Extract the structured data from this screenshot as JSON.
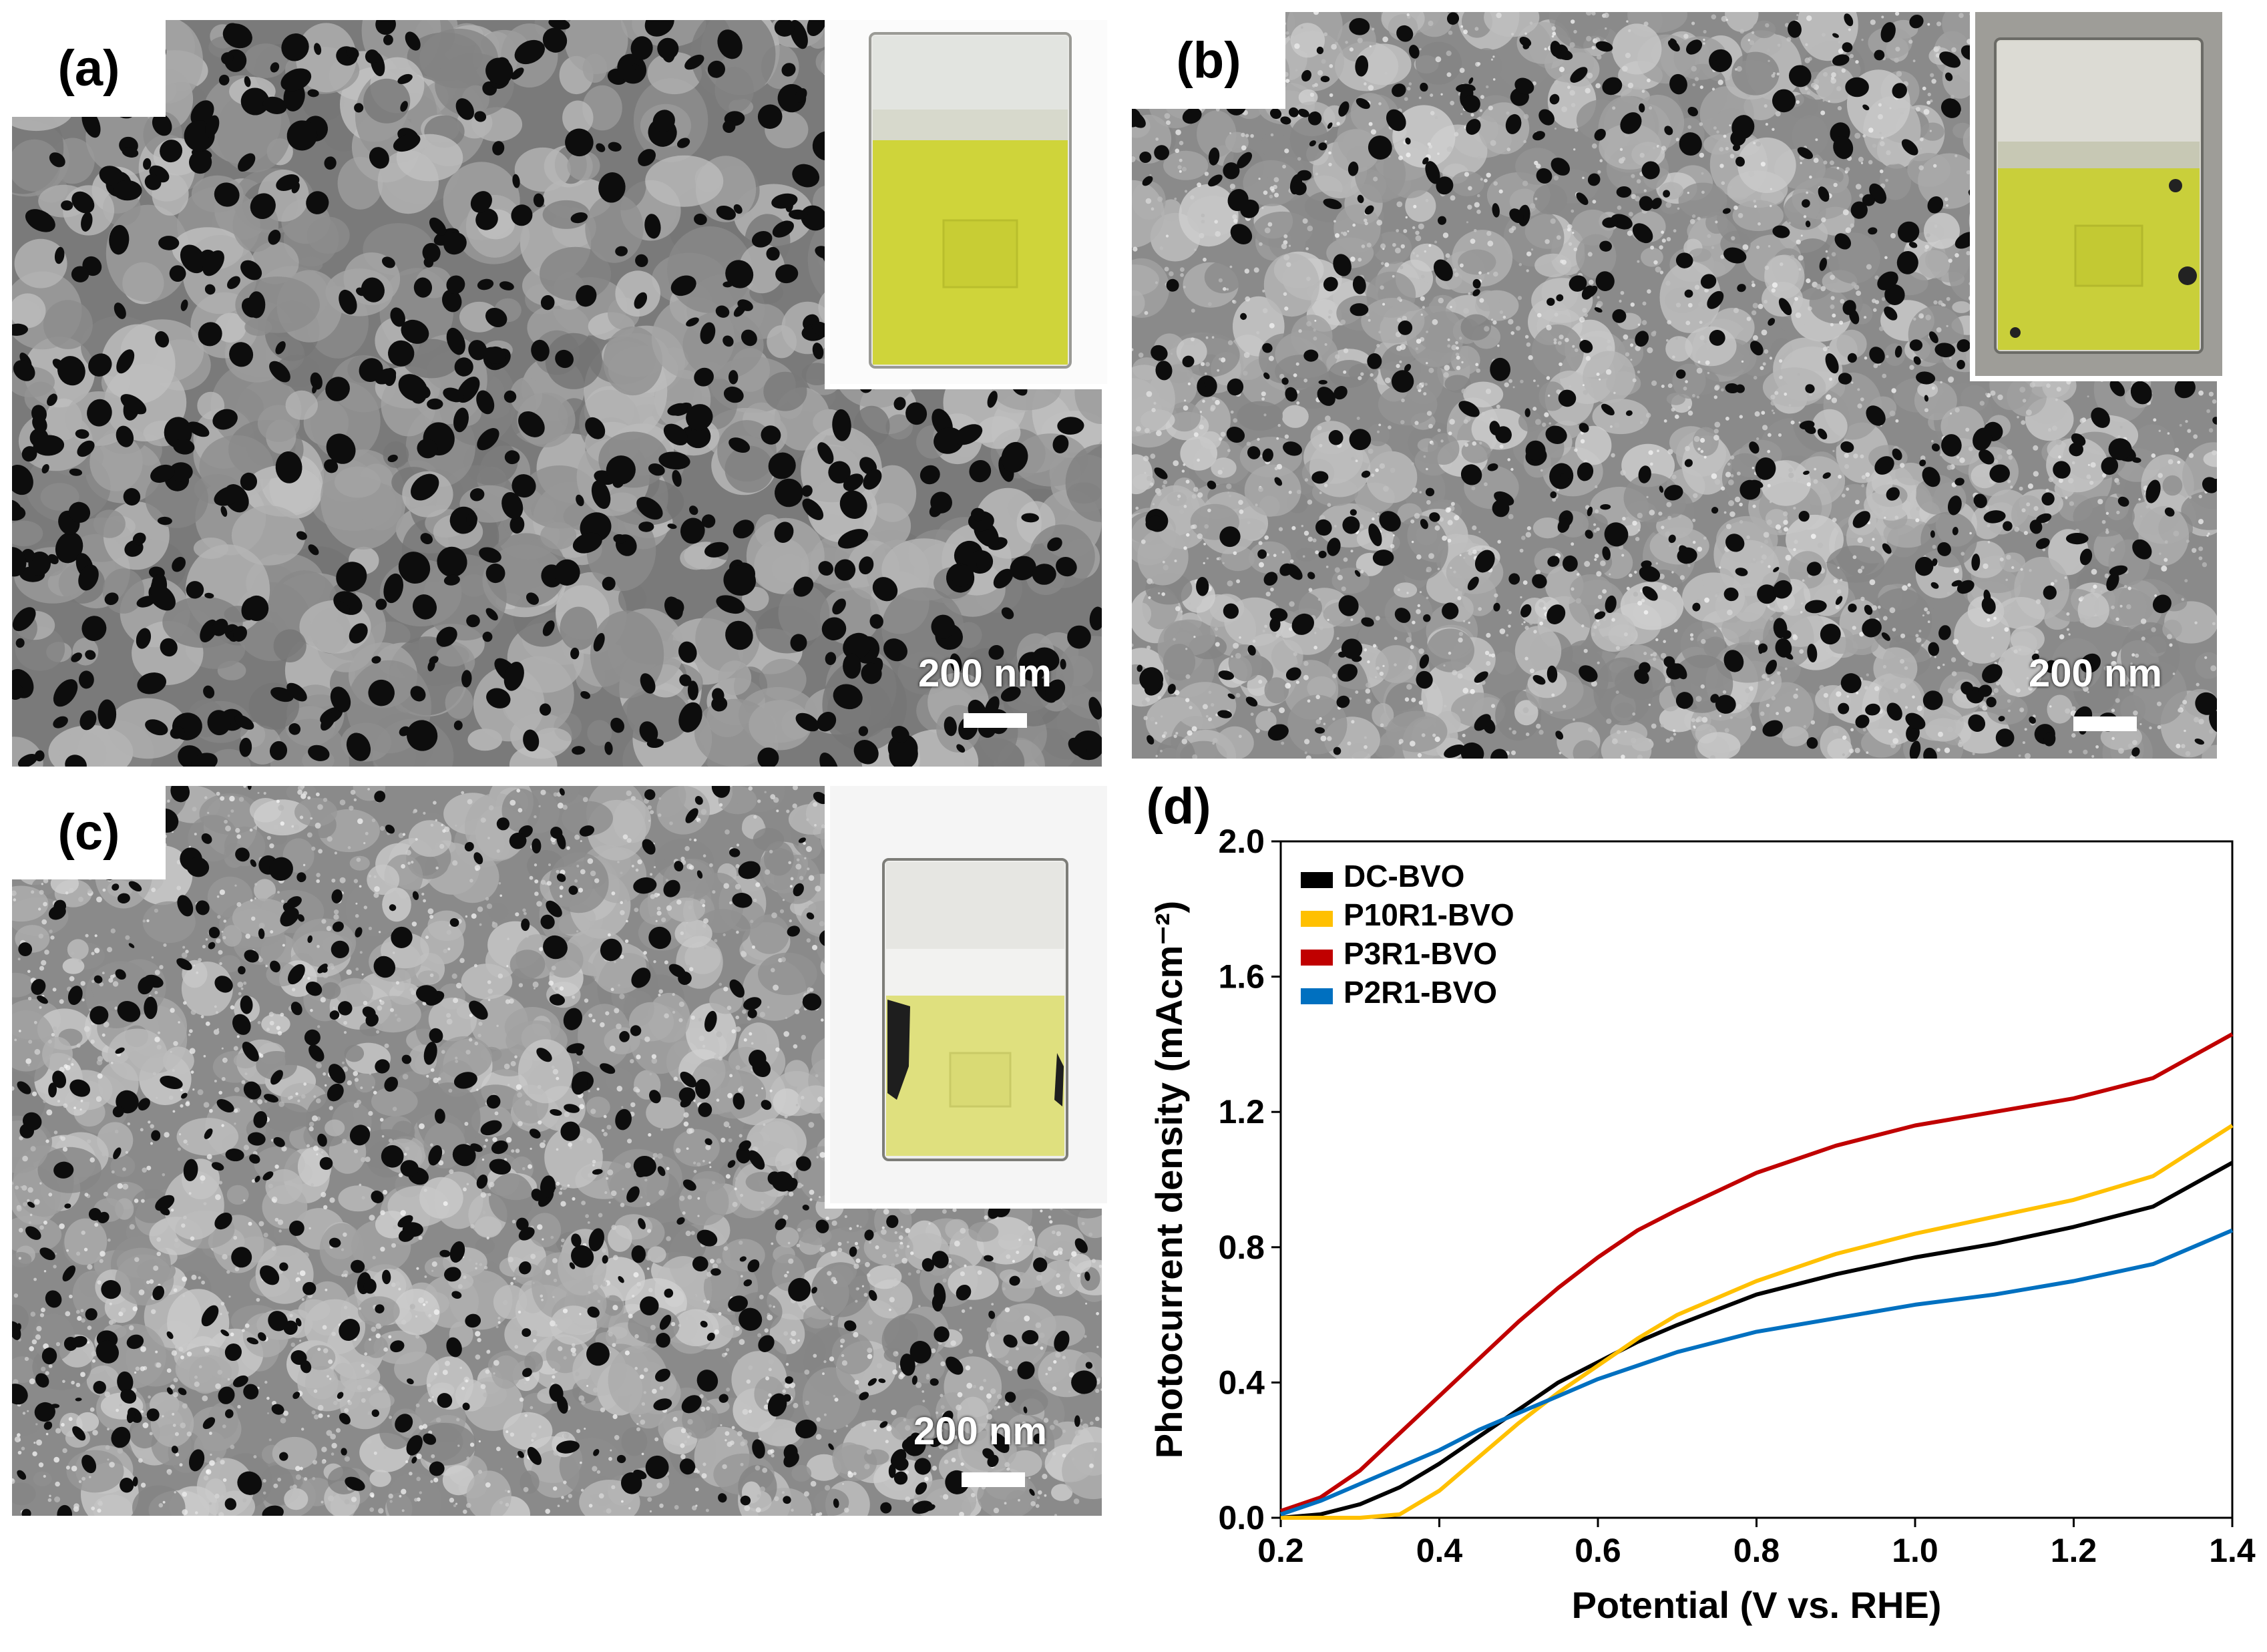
{
  "panels": {
    "a": {
      "label": "(a)",
      "scale_text": "200 nm"
    },
    "b": {
      "label": "(b)",
      "scale_text": "200 nm"
    },
    "c": {
      "label": "(c)",
      "scale_text": "200 nm"
    },
    "d": {
      "label": "(d)"
    }
  },
  "colors": {
    "DC-BVO": "#000000",
    "P10R1-BVO": "#ffc000",
    "P3R1-BVO": "#c00000",
    "P2R1-BVO": "#0070c0",
    "film_yellow": "#cfd43a"
  },
  "chart_data": {
    "type": "line",
    "xlabel": "Potential (V vs. RHE)",
    "ylabel": "Photocurrent density (mAcm⁻²)",
    "xlim": [
      0.2,
      1.4
    ],
    "ylim": [
      0.0,
      2.0
    ],
    "x_ticks": [
      "0.2",
      "0.4",
      "0.6",
      "0.8",
      "1.0",
      "1.2",
      "1.4"
    ],
    "y_ticks": [
      "0.0",
      "0.4",
      "0.8",
      "1.2",
      "1.6",
      "2.0"
    ],
    "legend_position": "top-left",
    "series": [
      {
        "name": "DC-BVO",
        "color": "#000000",
        "x": [
          0.2,
          0.25,
          0.3,
          0.35,
          0.4,
          0.45,
          0.5,
          0.55,
          0.6,
          0.65,
          0.7,
          0.8,
          0.9,
          1.0,
          1.1,
          1.2,
          1.3,
          1.4
        ],
        "y": [
          0.0,
          0.01,
          0.04,
          0.09,
          0.16,
          0.24,
          0.32,
          0.4,
          0.46,
          0.52,
          0.57,
          0.66,
          0.72,
          0.77,
          0.81,
          0.86,
          0.92,
          1.05
        ]
      },
      {
        "name": "P10R1-BVO",
        "color": "#ffc000",
        "x": [
          0.2,
          0.25,
          0.3,
          0.35,
          0.4,
          0.45,
          0.5,
          0.55,
          0.6,
          0.65,
          0.7,
          0.8,
          0.9,
          1.0,
          1.1,
          1.2,
          1.3,
          1.4
        ],
        "y": [
          0.0,
          0.0,
          0.0,
          0.01,
          0.08,
          0.18,
          0.28,
          0.37,
          0.45,
          0.53,
          0.6,
          0.7,
          0.78,
          0.84,
          0.89,
          0.94,
          1.01,
          1.16
        ]
      },
      {
        "name": "P3R1-BVO",
        "color": "#c00000",
        "x": [
          0.2,
          0.25,
          0.3,
          0.35,
          0.4,
          0.45,
          0.5,
          0.55,
          0.6,
          0.65,
          0.7,
          0.8,
          0.9,
          1.0,
          1.1,
          1.2,
          1.3,
          1.4
        ],
        "y": [
          0.02,
          0.06,
          0.14,
          0.25,
          0.36,
          0.47,
          0.58,
          0.68,
          0.77,
          0.85,
          0.91,
          1.02,
          1.1,
          1.16,
          1.2,
          1.24,
          1.3,
          1.43
        ]
      },
      {
        "name": "P2R1-BVO",
        "color": "#0070c0",
        "x": [
          0.2,
          0.25,
          0.3,
          0.35,
          0.4,
          0.45,
          0.5,
          0.55,
          0.6,
          0.65,
          0.7,
          0.8,
          0.9,
          1.0,
          1.1,
          1.2,
          1.3,
          1.4
        ],
        "y": [
          0.01,
          0.05,
          0.1,
          0.15,
          0.2,
          0.26,
          0.31,
          0.36,
          0.41,
          0.45,
          0.49,
          0.55,
          0.59,
          0.63,
          0.66,
          0.7,
          0.75,
          0.85
        ]
      }
    ]
  }
}
